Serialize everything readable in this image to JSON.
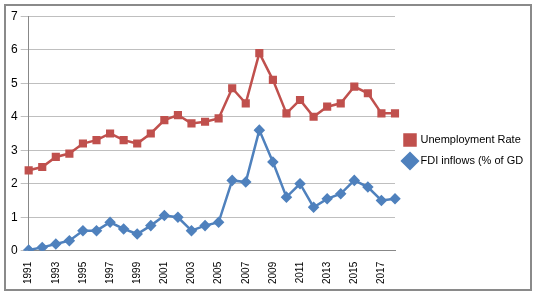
{
  "chart_data": {
    "type": "line",
    "categories": [
      "1991",
      null,
      "1993",
      null,
      "1995",
      null,
      "1997",
      null,
      "1999",
      null,
      "2001",
      null,
      "2003",
      null,
      "2005",
      null,
      "2007",
      null,
      "2009",
      null,
      "2011",
      null,
      "2013",
      null,
      "2015",
      null,
      "2017",
      null
    ],
    "series": [
      {
        "name": "Unemployment Rate (In %)",
        "color": "#c0504d",
        "marker": "square",
        "line_style": "solid",
        "values": [
          2.4,
          2.5,
          2.8,
          2.9,
          3.2,
          3.3,
          3.5,
          3.3,
          3.2,
          3.5,
          3.9,
          4.05,
          3.8,
          3.85,
          3.95,
          4.85,
          4.4,
          5.9,
          5.1,
          4.1,
          4.5,
          4.0,
          4.3,
          4.4,
          4.9,
          4.7,
          4.1,
          4.1
        ]
      },
      {
        "name": "FDI inflows (% of GDP)",
        "color": "#4f81bd",
        "marker": "diamond",
        "line_style": "solid",
        "values": [
          0.02,
          0.1,
          0.2,
          0.3,
          0.6,
          0.6,
          0.85,
          0.65,
          0.5,
          0.75,
          1.05,
          1.0,
          0.6,
          0.75,
          0.85,
          2.1,
          2.05,
          3.6,
          2.65,
          1.6,
          2.0,
          1.3,
          1.55,
          1.7,
          2.1,
          1.9,
          1.5,
          1.55
        ]
      }
    ],
    "ylim": [
      0,
      7
    ],
    "yticks": [
      0,
      1,
      2,
      3,
      4,
      5,
      6,
      7
    ],
    "grid": true,
    "legend": "right"
  }
}
